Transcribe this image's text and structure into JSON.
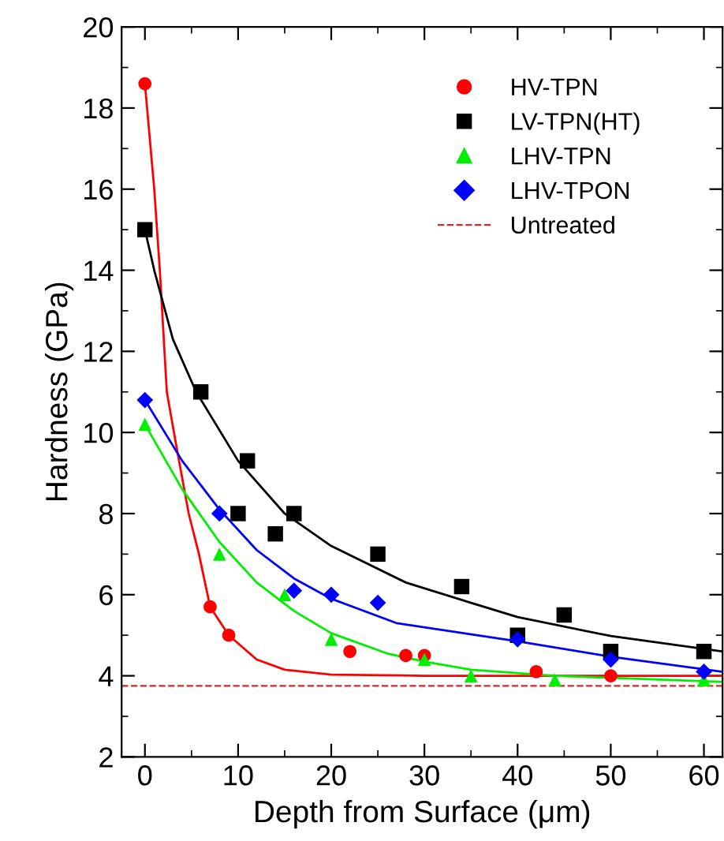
{
  "chart_data": {
    "type": "scatter",
    "xlabel": "Depth from Surface (μm)",
    "ylabel": "Hardness (GPa)",
    "xlim": [
      -2.5,
      62
    ],
    "xticks": [
      0,
      10,
      20,
      30,
      40,
      50,
      60
    ],
    "ylim": [
      2,
      20
    ],
    "yticks": [
      2,
      4,
      6,
      8,
      10,
      12,
      14,
      16,
      18,
      20
    ],
    "legend": "top right",
    "grid": false,
    "series": [
      {
        "name": "HV-TPN",
        "marker": "circle",
        "color": "#ff0000",
        "x": [
          0,
          7,
          9,
          22,
          28,
          30,
          42,
          50
        ],
        "values": [
          18.6,
          5.7,
          5.0,
          4.6,
          4.5,
          4.5,
          4.1,
          4.0
        ]
      },
      {
        "name": "LV-TPN(HT)",
        "marker": "square",
        "color": "#000000",
        "x": [
          0,
          6,
          10,
          11,
          14,
          16,
          25,
          34,
          40,
          45,
          50,
          60
        ],
        "values": [
          15,
          11,
          8,
          9.3,
          7.5,
          8,
          7,
          6.2,
          5.0,
          5.5,
          4.6,
          4.6
        ]
      },
      {
        "name": "LHV-TPN",
        "marker": "triangle",
        "color": "#00ee00",
        "x": [
          0,
          8,
          15,
          20,
          30,
          35,
          44,
          60
        ],
        "values": [
          10.2,
          7.0,
          6.0,
          4.9,
          4.4,
          4.0,
          3.9,
          3.9
        ]
      },
      {
        "name": "LHV-TPON",
        "marker": "diamond",
        "color": "#0000ff",
        "x": [
          0,
          8,
          16,
          20,
          25,
          40,
          50,
          60
        ],
        "values": [
          10.8,
          8.0,
          6.1,
          6.0,
          5.8,
          4.9,
          4.4,
          4.1
        ]
      },
      {
        "type": "line",
        "marker": "none",
        "color": "#ff0000",
        "x": [
          0,
          1,
          1.6,
          2.35,
          3.5,
          4.7,
          5.8,
          7,
          9,
          12,
          15,
          20,
          30,
          62
        ],
        "values": [
          18.6,
          16,
          14,
          11,
          9.5,
          8,
          7,
          5.7,
          5.0,
          4.4,
          4.15,
          4.03,
          4.0,
          4.0
        ]
      },
      {
        "type": "line",
        "marker": "none",
        "color": "#000000",
        "x": [
          0,
          1,
          3,
          5.5,
          10,
          15,
          20,
          28,
          35,
          40,
          50,
          62
        ],
        "values": [
          15,
          14,
          12.3,
          11,
          9.3,
          8.0,
          7.2,
          6.3,
          5.8,
          5.45,
          4.98,
          4.6
        ]
      },
      {
        "type": "line",
        "marker": "none",
        "color": "#00ee00",
        "x": [
          0,
          4,
          8,
          12,
          16,
          20,
          26,
          30,
          35,
          44,
          62
        ],
        "values": [
          10.2,
          8.6,
          7.3,
          6.3,
          5.6,
          5.05,
          4.55,
          4.35,
          4.15,
          4.0,
          3.85
        ]
      },
      {
        "type": "line",
        "marker": "none",
        "color": "#0000ff",
        "x": [
          0,
          4,
          8,
          12,
          16,
          20,
          27,
          40,
          50,
          62
        ],
        "values": [
          10.8,
          9.3,
          8.1,
          7.1,
          6.4,
          5.9,
          5.3,
          4.85,
          4.47,
          4.1
        ]
      }
    ],
    "ref_lines": [
      {
        "axis": "y",
        "value": 3.75,
        "label": "Untreated",
        "color": "#c03030",
        "line_style": "dashed"
      }
    ]
  }
}
